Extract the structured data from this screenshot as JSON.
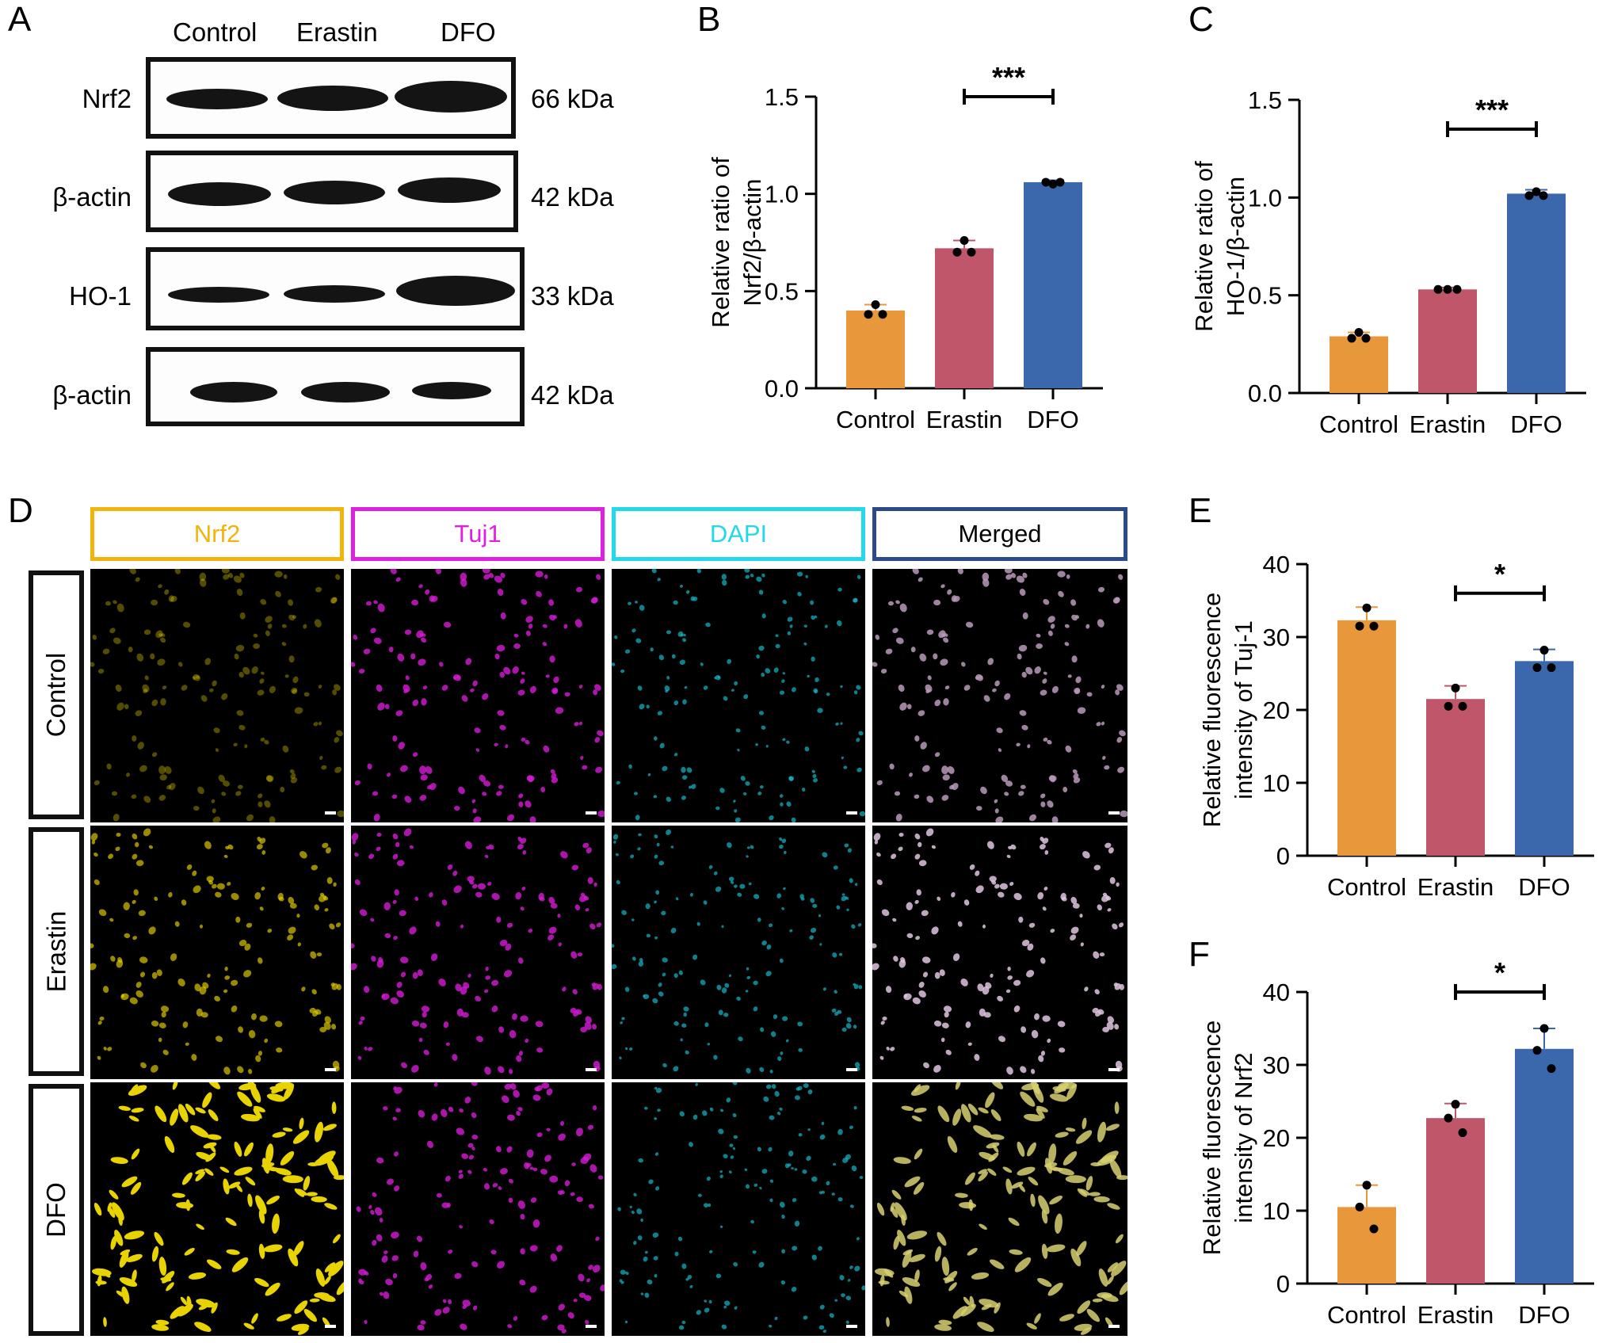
{
  "panel_letters": {
    "a": "A",
    "b": "B",
    "c": "C",
    "d": "D",
    "e": "E",
    "f": "F"
  },
  "western_blot": {
    "lanes": [
      "Control",
      "Erastin",
      "DFO"
    ],
    "rows": [
      {
        "label": "Nrf2",
        "kda": "66 kDa",
        "band_intensity": [
          0.55,
          0.75,
          0.95
        ]
      },
      {
        "label": "β-actin",
        "kda": "42 kDa",
        "band_intensity": [
          0.8,
          0.78,
          0.78
        ]
      },
      {
        "label": "HO-1",
        "kda": "33 kDa",
        "band_intensity": [
          0.5,
          0.55,
          0.9
        ]
      },
      {
        "label": "β-actin",
        "kda": "42 kDa",
        "band_intensity": [
          0.85,
          0.78,
          0.6
        ]
      }
    ]
  },
  "microscopy": {
    "channels": [
      {
        "name": "Nrf2",
        "color": "#f2b40c"
      },
      {
        "name": "Tuj1",
        "color": "#e020e0"
      },
      {
        "name": "DAPI",
        "color": "#22d8ea"
      },
      {
        "name": "Merged",
        "color": "#2a4a8c"
      }
    ],
    "conditions": [
      "Control",
      "Erastin",
      "DFO"
    ],
    "nrf2_signal_level": [
      0.15,
      0.55,
      1.0
    ]
  },
  "colors": {
    "control": "#e8973a",
    "erastin": "#c0566a",
    "dfo": "#3b68ad",
    "dot": "#000000"
  },
  "chart_data": [
    {
      "panel": "B",
      "type": "bar",
      "categories": [
        "Control",
        "Erastin",
        "DFO"
      ],
      "values": [
        0.4,
        0.72,
        1.06
      ],
      "errors": [
        0.03,
        0.04,
        0.01
      ],
      "points": [
        [
          0.43,
          0.38,
          0.38
        ],
        [
          0.76,
          0.7,
          0.7
        ],
        [
          1.05,
          1.06,
          1.06
        ]
      ],
      "ylabel": [
        "Relative ratio of",
        "Nrf2/β-actin"
      ],
      "ylim": [
        0,
        1.5
      ],
      "yticks": [
        "0.0",
        "0.5",
        "1.0",
        "1.5"
      ],
      "significance": {
        "from": 1,
        "to": 2,
        "label": "***",
        "y": 1.5
      }
    },
    {
      "panel": "C",
      "type": "bar",
      "categories": [
        "Control",
        "Erastin",
        "DFO"
      ],
      "values": [
        0.29,
        0.53,
        1.02
      ],
      "errors": [
        0.02,
        0.01,
        0.02
      ],
      "points": [
        [
          0.31,
          0.28,
          0.28
        ],
        [
          0.53,
          0.53,
          0.53
        ],
        [
          1.03,
          1.01,
          1.01
        ]
      ],
      "ylabel": [
        "Relative ratio of",
        "HO-1/β-actin"
      ],
      "ylim": [
        0,
        1.5
      ],
      "yticks": [
        "0.0",
        "0.5",
        "1.0",
        "1.5"
      ],
      "significance": {
        "from": 1,
        "to": 2,
        "label": "***",
        "y": 1.35
      }
    },
    {
      "panel": "E",
      "type": "bar",
      "categories": [
        "Control",
        "Erastin",
        "DFO"
      ],
      "values": [
        32.3,
        21.5,
        26.7
      ],
      "errors": [
        1.8,
        1.8,
        1.6
      ],
      "points": [
        [
          34.0,
          31.5,
          31.5
        ],
        [
          23.0,
          20.5,
          20.5
        ],
        [
          28.2,
          25.8,
          25.8
        ]
      ],
      "ylabel": [
        "Relative fluorescence",
        "intensity of Tuj-1"
      ],
      "ylim": [
        0,
        40
      ],
      "yticks": [
        "0",
        "10",
        "20",
        "30",
        "40"
      ],
      "significance": {
        "from": 1,
        "to": 2,
        "label": "*",
        "y": 36.0
      }
    },
    {
      "panel": "F",
      "type": "bar",
      "categories": [
        "Control",
        "Erastin",
        "DFO"
      ],
      "values": [
        10.5,
        22.7,
        32.2
      ],
      "errors": [
        3.0,
        2.0,
        2.8
      ],
      "points": [
        [
          13.5,
          10.5,
          7.5
        ],
        [
          24.6,
          22.7,
          20.7
        ],
        [
          35.0,
          32.0,
          29.5
        ]
      ],
      "ylabel": [
        "Relative fluorescence",
        "intensity of Nrf2"
      ],
      "ylim": [
        0,
        40
      ],
      "yticks": [
        "0",
        "10",
        "20",
        "30",
        "40"
      ],
      "significance": {
        "from": 1,
        "to": 2,
        "label": "*",
        "y": 40
      }
    }
  ]
}
